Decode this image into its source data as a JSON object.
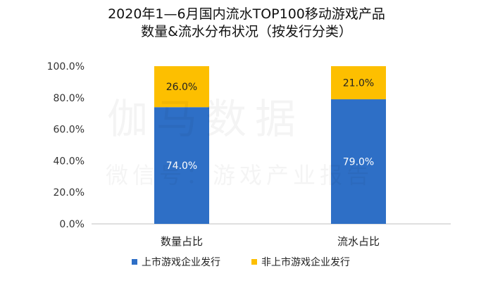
{
  "title": {
    "line1": "2020年1—6月国内流水TOP100移动游戏产品",
    "line2": "数量&流水分布状况（按发行分类）"
  },
  "watermark": {
    "line1": "伽马数据",
    "line2": "微信号：游戏产业报告"
  },
  "chart_data": {
    "type": "bar",
    "stacked": true,
    "categories": [
      "数量占比",
      "流水占比"
    ],
    "series": [
      {
        "name": "上市游戏企业发行",
        "values": [
          74.0,
          79.0
        ],
        "labels": [
          "74.0%",
          "79.0%"
        ],
        "color": "#2e6fc6"
      },
      {
        "name": "非上市游戏企业发行",
        "values": [
          26.0,
          21.0
        ],
        "labels": [
          "26.0%",
          "21.0%"
        ],
        "color": "#fdbf00"
      }
    ],
    "ylim": [
      0,
      100
    ],
    "yticks": [
      "0.0%",
      "20.0%",
      "40.0%",
      "60.0%",
      "80.0%",
      "100.0%"
    ],
    "grid": false,
    "legend_position": "bottom",
    "colors": {
      "label_on_blue": "#ffffff",
      "label_on_yellow": "#222222",
      "axis": "#bfbfbf"
    }
  }
}
